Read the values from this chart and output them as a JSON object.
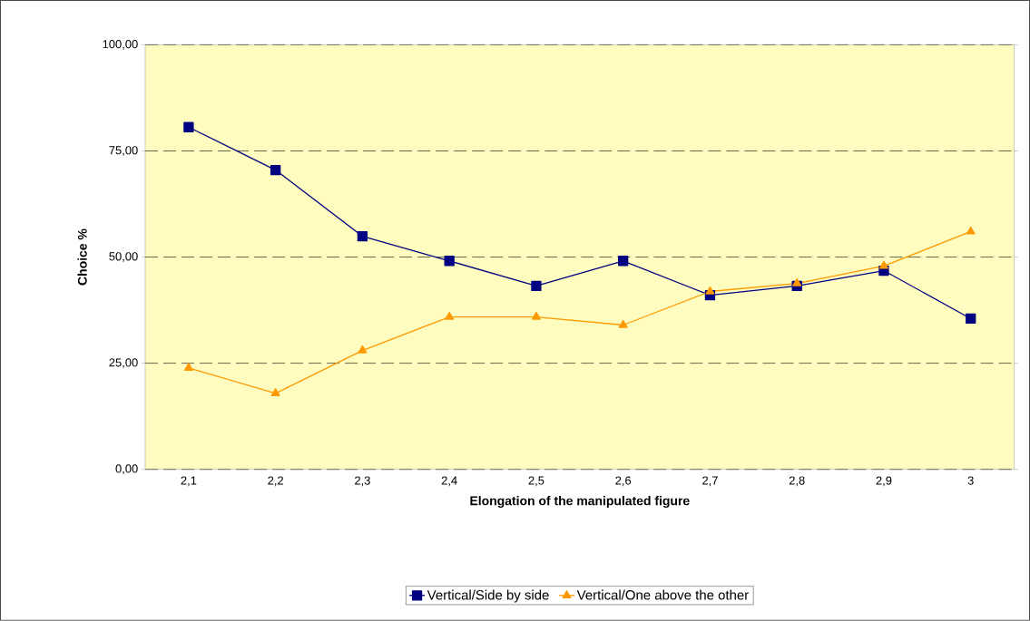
{
  "chart_data": {
    "type": "line",
    "xlabel": "Elongation of the manipulated figure",
    "ylabel": "Choice %",
    "categories": [
      "2,1",
      "2,2",
      "2,3",
      "2,4",
      "2,5",
      "2,6",
      "2,7",
      "2,8",
      "2,9",
      "3"
    ],
    "series": [
      {
        "name": "Vertical/Side by side",
        "color": "#000080",
        "marker": "square",
        "values": [
          80.6,
          70.5,
          54.9,
          49.1,
          43.2,
          49.1,
          41.0,
          43.2,
          46.8,
          35.5
        ]
      },
      {
        "name": "Vertical/One above the other",
        "color": "#ff9900",
        "marker": "triangle",
        "values": [
          23.9,
          17.9,
          28.0,
          35.9,
          35.9,
          34.0,
          41.9,
          43.8,
          47.9,
          56.0
        ]
      }
    ],
    "ylim": [
      0,
      100
    ],
    "yticks": [
      {
        "value": 0,
        "label": "0,00"
      },
      {
        "value": 25,
        "label": "25,00"
      },
      {
        "value": 50,
        "label": "50,00"
      },
      {
        "value": 75,
        "label": "75,00"
      },
      {
        "value": 100,
        "label": "100,00"
      }
    ],
    "grid": "y",
    "legend": "bottom",
    "line_style": "solid"
  }
}
